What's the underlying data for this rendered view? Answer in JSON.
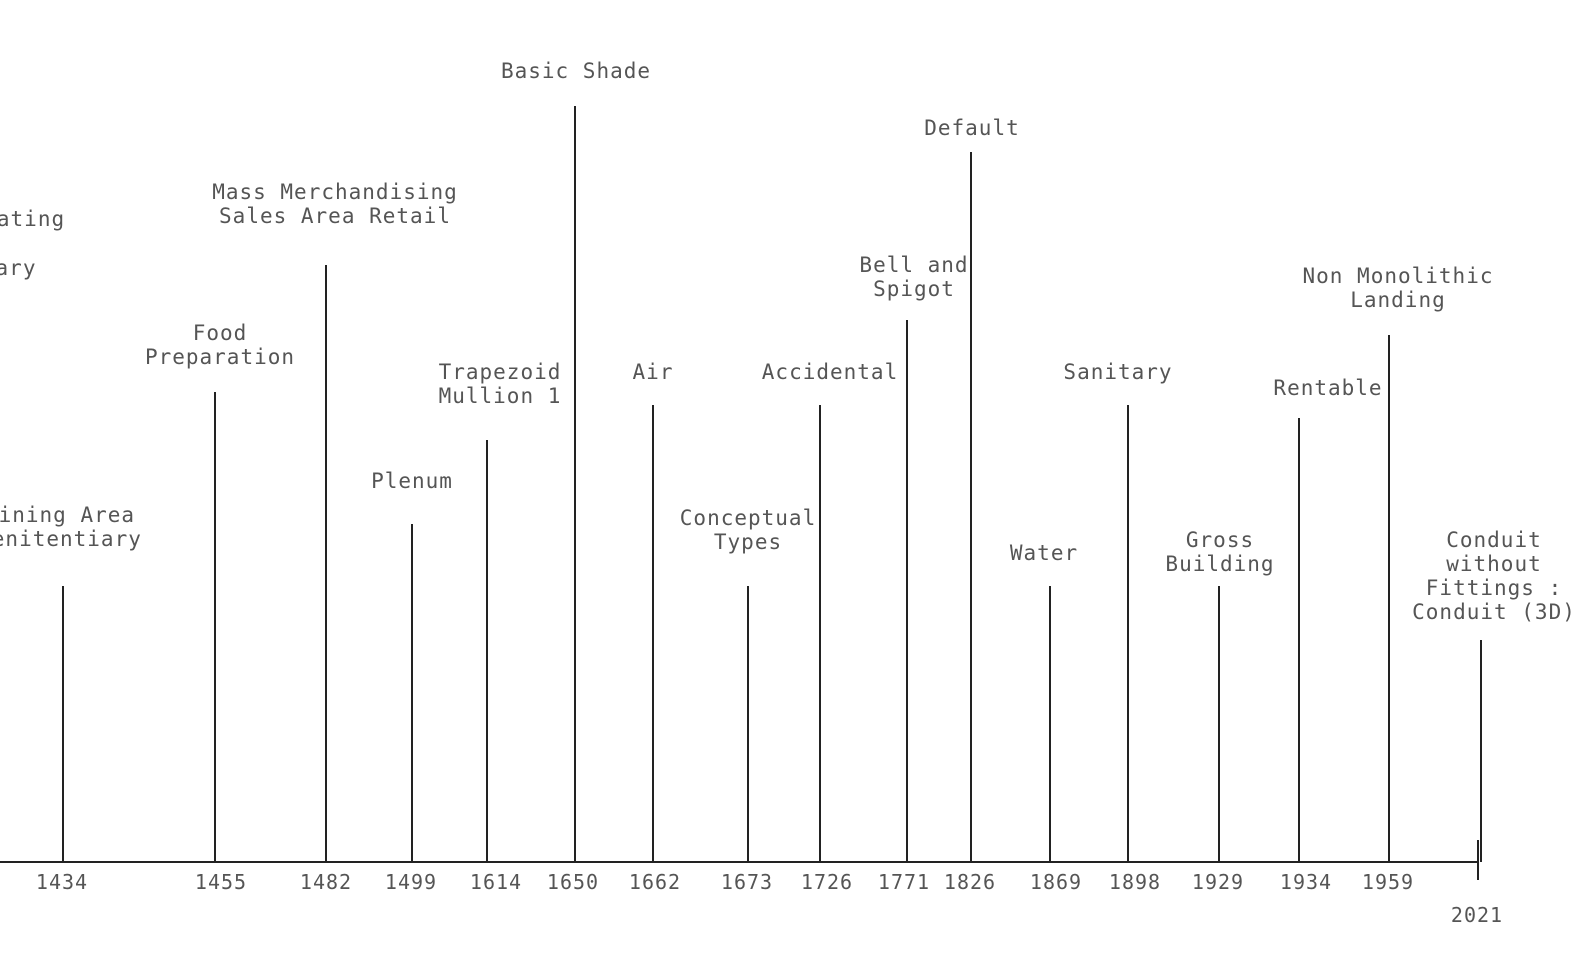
{
  "timeline": {
    "end_year": "2021",
    "events": [
      {
        "year": "1434",
        "lines": [
          "Dining Area",
          "Penitentiary"
        ]
      },
      {
        "year": "1455",
        "lines": [
          "Food",
          "Preparation"
        ]
      },
      {
        "year": "1482",
        "lines": [
          "Mass Merchandising",
          "Sales Area    Retail"
        ]
      },
      {
        "year": "1499",
        "lines": [
          "Plenum"
        ]
      },
      {
        "year": "1614",
        "lines": [
          "Trapezoid",
          "Mullion 1"
        ]
      },
      {
        "year": "1650",
        "lines": [
          "Basic Shade"
        ]
      },
      {
        "year": "1662",
        "lines": [
          "Air"
        ]
      },
      {
        "year": "1673",
        "lines": [
          "Conceptual",
          "Types"
        ]
      },
      {
        "year": "1726",
        "lines": [
          "Accidental"
        ]
      },
      {
        "year": "1771",
        "lines": [
          "Bell and",
          "Spigot"
        ]
      },
      {
        "year": "1826",
        "lines": [
          "Default"
        ]
      },
      {
        "year": "1869",
        "lines": [
          "Water"
        ]
      },
      {
        "year": "1898",
        "lines": [
          "Sanitary"
        ]
      },
      {
        "year": "1929",
        "lines": [
          "Gross",
          "Building"
        ]
      },
      {
        "year": "1934",
        "lines": [
          "Rentable"
        ]
      },
      {
        "year": "1959",
        "lines": [
          "Non Monolithic",
          "Landing"
        ]
      },
      {
        "year": "2021",
        "lines": [
          "Conduit",
          "without",
          "Fittings :",
          "Conduit (3D)"
        ]
      }
    ],
    "partial_labels": [
      "ating",
      "ary"
    ]
  }
}
